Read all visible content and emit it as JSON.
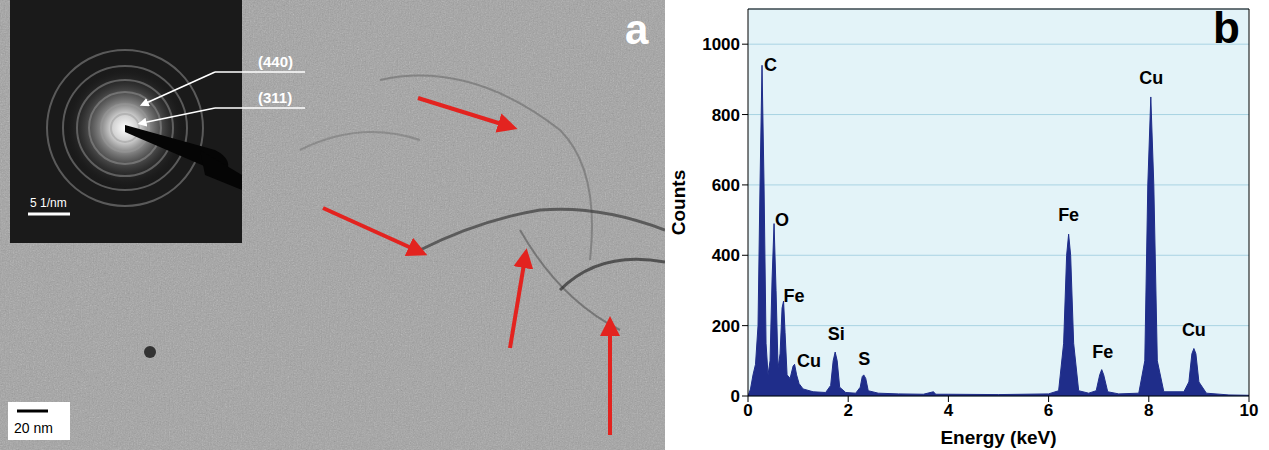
{
  "image_panel": {
    "label": "a",
    "scale_bar": "20 nm",
    "inset": {
      "scale_bar": "5 1/nm",
      "ring_labels": [
        "(440)",
        "(311)"
      ]
    }
  },
  "chart_panel_label": "b",
  "chart_data": {
    "type": "area",
    "xlabel": "Energy (keV)",
    "ylabel": "Counts",
    "color": "#1f2d8a",
    "grid": true,
    "xlim": [
      0,
      10
    ],
    "xticks": [
      0,
      2,
      4,
      6,
      8,
      10
    ],
    "ylim": [
      0,
      1100
    ],
    "yticks": [
      0,
      200,
      400,
      600,
      800,
      1000
    ],
    "x": [
      0.0,
      0.05,
      0.1,
      0.15,
      0.2,
      0.24,
      0.28,
      0.32,
      0.36,
      0.4,
      0.44,
      0.48,
      0.52,
      0.56,
      0.6,
      0.64,
      0.68,
      0.71,
      0.74,
      0.78,
      0.84,
      0.9,
      0.93,
      0.97,
      1.02,
      1.1,
      1.3,
      1.55,
      1.65,
      1.7,
      1.74,
      1.78,
      1.83,
      1.95,
      2.15,
      2.24,
      2.28,
      2.31,
      2.35,
      2.4,
      2.6,
      3.0,
      3.5,
      3.7,
      3.75,
      4.0,
      5.0,
      6.0,
      6.2,
      6.3,
      6.36,
      6.4,
      6.44,
      6.5,
      6.6,
      6.8,
      6.95,
      7.02,
      7.06,
      7.1,
      7.18,
      7.4,
      7.8,
      7.92,
      7.98,
      8.04,
      8.1,
      8.17,
      8.3,
      8.7,
      8.8,
      8.86,
      8.9,
      8.94,
      9.0,
      9.15,
      9.6,
      10.0
    ],
    "values": [
      0,
      20,
      60,
      90,
      200,
      600,
      940,
      600,
      150,
      60,
      100,
      330,
      490,
      300,
      80,
      120,
      250,
      270,
      180,
      60,
      50,
      85,
      90,
      60,
      35,
      20,
      12,
      10,
      30,
      100,
      125,
      100,
      25,
      10,
      8,
      25,
      55,
      60,
      50,
      15,
      8,
      6,
      5,
      12,
      5,
      5,
      4,
      6,
      15,
      150,
      400,
      460,
      400,
      150,
      15,
      8,
      15,
      60,
      75,
      60,
      12,
      6,
      8,
      100,
      600,
      850,
      600,
      100,
      12,
      12,
      40,
      120,
      135,
      120,
      40,
      8,
      3,
      2
    ],
    "annotations": [
      {
        "text": "C",
        "x": 0.45,
        "y": 940
      },
      {
        "text": "O",
        "x": 0.68,
        "y": 500
      },
      {
        "text": "Fe",
        "x": 0.92,
        "y": 285
      },
      {
        "text": "Cu",
        "x": 1.22,
        "y": 100
      },
      {
        "text": "Si",
        "x": 1.76,
        "y": 175
      },
      {
        "text": "S",
        "x": 2.32,
        "y": 105
      },
      {
        "text": "Fe",
        "x": 6.4,
        "y": 515
      },
      {
        "text": "Fe",
        "x": 7.08,
        "y": 125
      },
      {
        "text": "Cu",
        "x": 8.05,
        "y": 905
      },
      {
        "text": "Cu",
        "x": 8.9,
        "y": 188
      }
    ]
  }
}
